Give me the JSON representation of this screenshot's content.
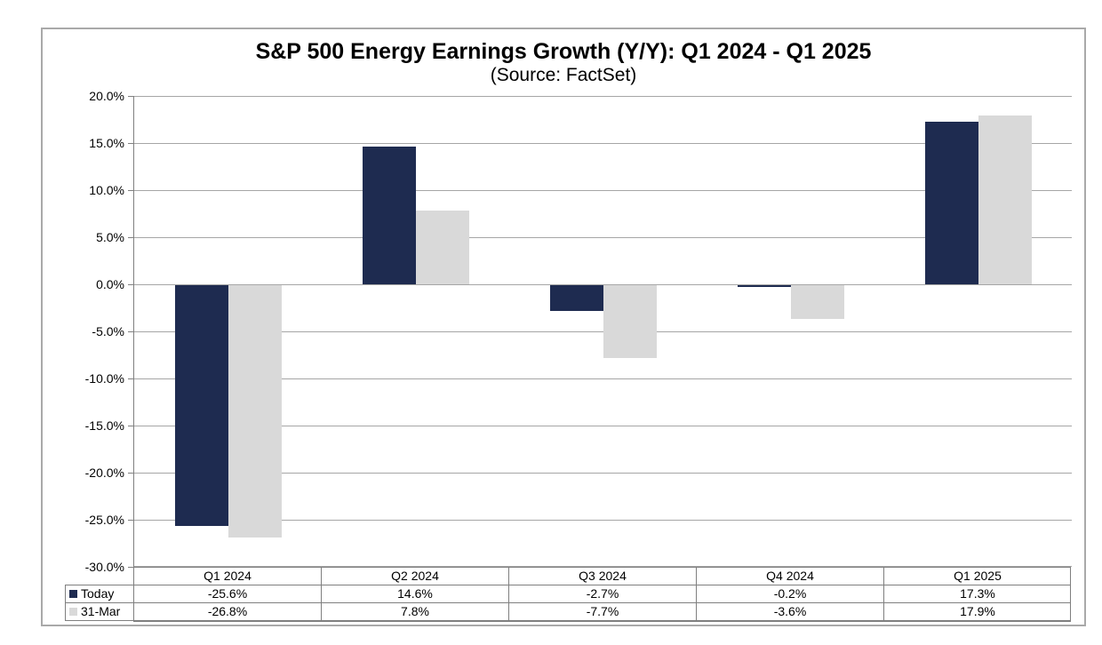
{
  "chart_data": {
    "type": "bar",
    "title": "S&P 500 Energy Earnings Growth (Y/Y): Q1 2024 - Q1 2025",
    "subtitle": "(Source: FactSet)",
    "categories": [
      "Q1 2024",
      "Q2 2024",
      "Q3 2024",
      "Q4 2024",
      "Q1 2025"
    ],
    "series": [
      {
        "name": "Today",
        "color": "#1e2b50",
        "values": [
          -25.6,
          14.6,
          -2.7,
          -0.2,
          17.3
        ],
        "labels": [
          "-25.6%",
          "14.6%",
          "-2.7%",
          "-0.2%",
          "17.3%"
        ]
      },
      {
        "name": "31-Mar",
        "color": "#d9d9d9",
        "values": [
          -26.8,
          7.8,
          -7.7,
          -3.6,
          17.9
        ],
        "labels": [
          "-26.8%",
          "7.8%",
          "-7.7%",
          "-3.6%",
          "17.9%"
        ]
      }
    ],
    "ylim": [
      -30,
      20
    ],
    "ytick_step": 5,
    "ytick_labels": [
      "20.0%",
      "15.0%",
      "10.0%",
      "5.0%",
      "0.0%",
      "-5.0%",
      "-10.0%",
      "-15.0%",
      "-20.0%",
      "-25.0%",
      "-30.0%"
    ],
    "xlabel": "",
    "ylabel": "",
    "grid": true,
    "legend_position": "data-table-left"
  },
  "colors": {
    "series_today": "#1e2b50",
    "series_31mar": "#d9d9d9",
    "gridline": "#a6a6a6",
    "axis": "#808080",
    "table_border": "#7f7f7f",
    "frame_border": "#a9a9a9",
    "text": "#000000",
    "background": "#ffffff"
  }
}
